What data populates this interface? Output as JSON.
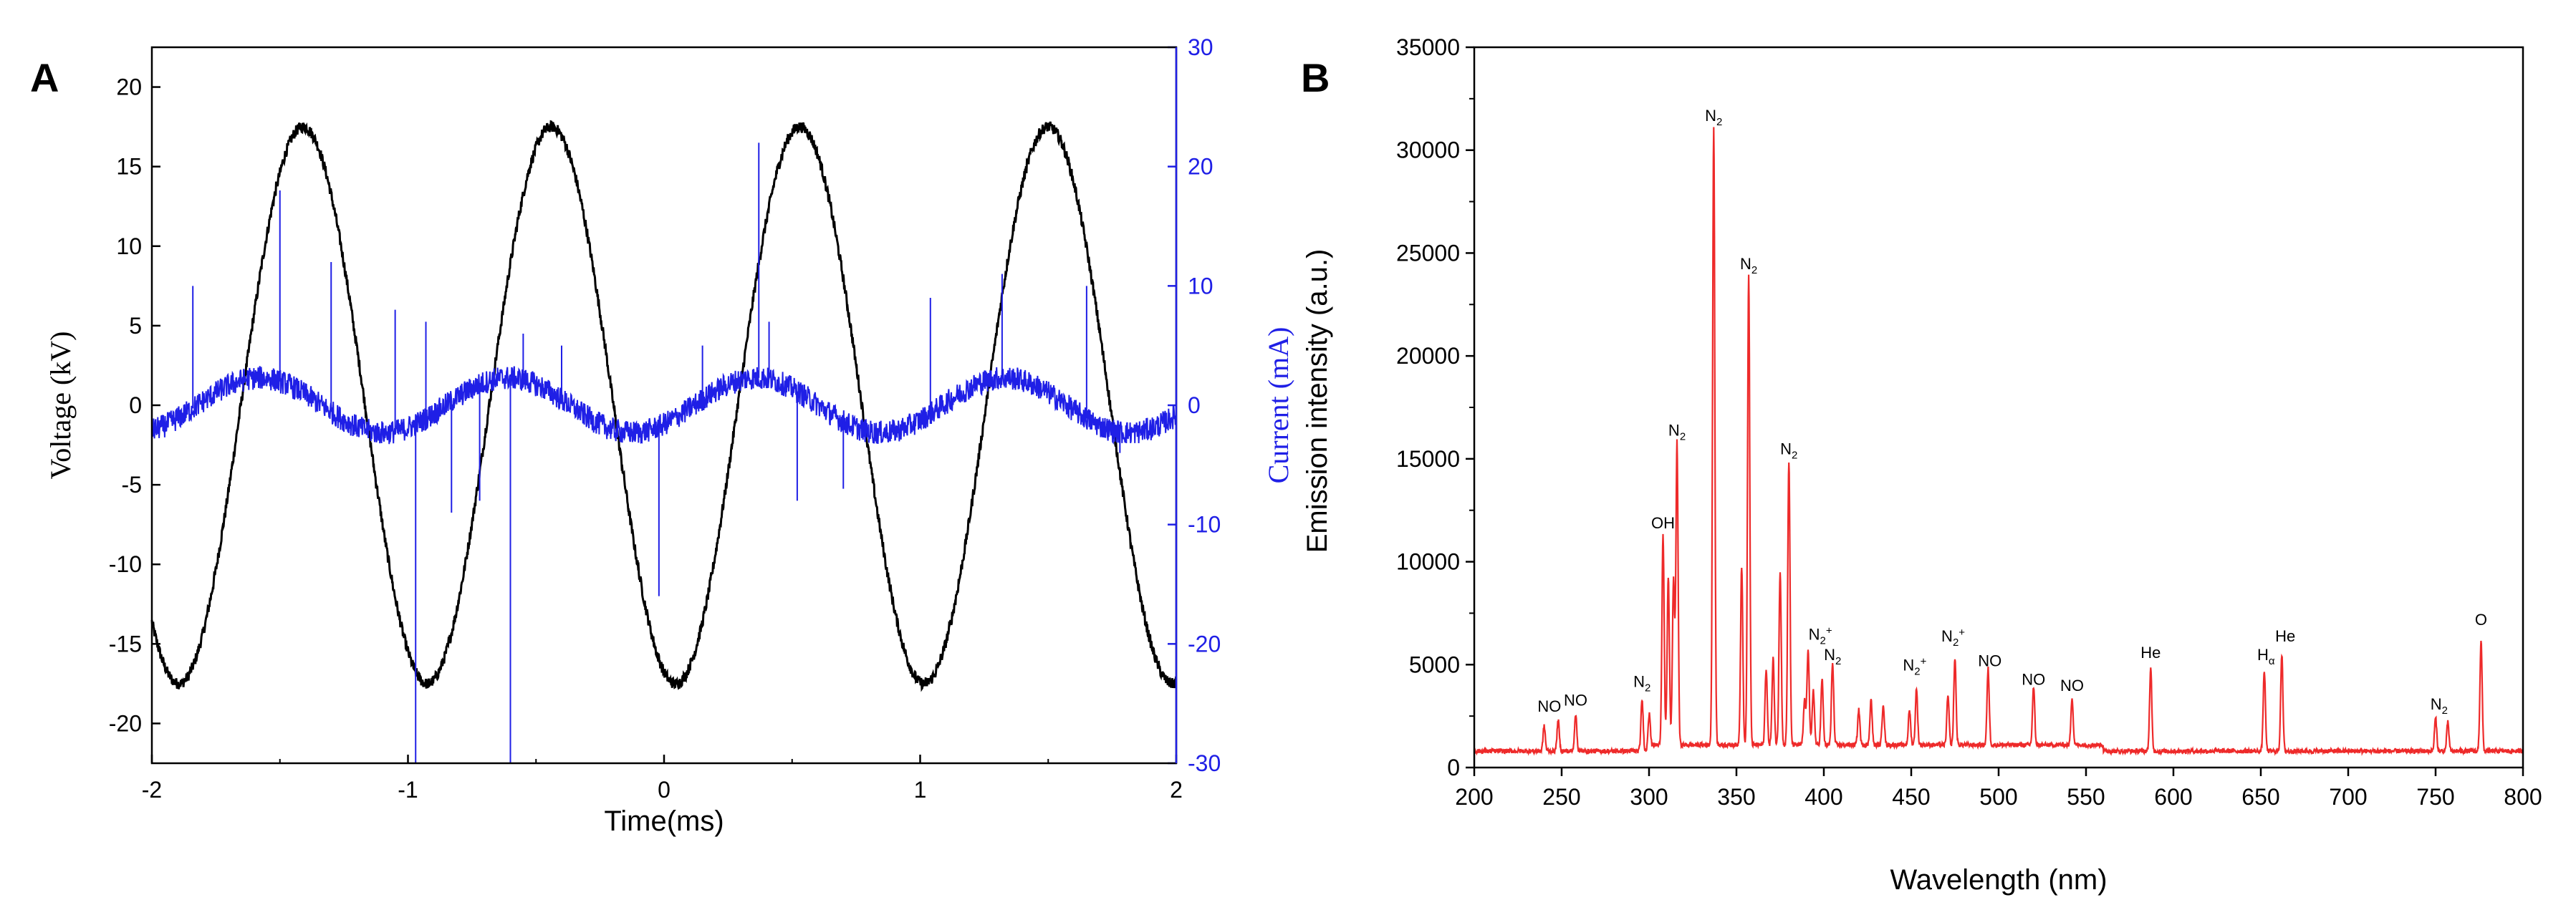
{
  "chart_data": [
    {
      "type": "line",
      "panel_label": "A",
      "title": "",
      "xlabel": "Time(ms)",
      "xlim": [
        -2,
        2
      ],
      "xticks": [
        -2,
        -1,
        0,
        1,
        2
      ],
      "ylabel_left": "Voltage (kV)",
      "ylim_left": [
        -22.5,
        22.5
      ],
      "yticks_left": [
        -20,
        -15,
        -10,
        -5,
        0,
        5,
        10,
        15,
        20
      ],
      "ylabel_right": "Current (mA)",
      "ylim_right": [
        -30,
        30
      ],
      "yticks_right": [
        -30,
        -20,
        -10,
        0,
        10,
        20,
        30
      ],
      "series": [
        {
          "name": "Voltage",
          "axis": "left",
          "color": "#000000",
          "model": "sine",
          "amplitude_kV": 17.5,
          "period_ms": 0.97,
          "first_peak_ms": -1.41
        },
        {
          "name": "Current",
          "axis": "right",
          "color": "#1f1fe6",
          "model": "sine",
          "amplitude_mA": 2.3,
          "period_ms": 0.97,
          "first_peak_ms": -1.58,
          "spikes": [
            {
              "t": -1.84,
              "mA": 10
            },
            {
              "t": -1.5,
              "mA": 18
            },
            {
              "t": -1.3,
              "mA": 12
            },
            {
              "t": -1.05,
              "mA": 8
            },
            {
              "t": -0.97,
              "mA": -30
            },
            {
              "t": -0.93,
              "mA": 7
            },
            {
              "t": -0.83,
              "mA": -9
            },
            {
              "t": -0.72,
              "mA": -8
            },
            {
              "t": -0.6,
              "mA": -30
            },
            {
              "t": -0.55,
              "mA": 6
            },
            {
              "t": -0.4,
              "mA": 5
            },
            {
              "t": -0.02,
              "mA": -16
            },
            {
              "t": 0.15,
              "mA": 5
            },
            {
              "t": 0.37,
              "mA": 22
            },
            {
              "t": 0.41,
              "mA": 7
            },
            {
              "t": 0.52,
              "mA": -8
            },
            {
              "t": 0.7,
              "mA": -7
            },
            {
              "t": 1.04,
              "mA": 9
            },
            {
              "t": 1.32,
              "mA": 11
            },
            {
              "t": 1.65,
              "mA": 10
            },
            {
              "t": 1.78,
              "mA": -4
            }
          ]
        }
      ]
    },
    {
      "type": "line",
      "panel_label": "B",
      "title": "",
      "xlabel": "Wavelength (nm)",
      "ylabel": "Emission intensity (a.u.)",
      "xlim": [
        200,
        800
      ],
      "ylim": [
        0,
        35000
      ],
      "xticks": [
        200,
        250,
        300,
        350,
        400,
        450,
        500,
        550,
        600,
        650,
        700,
        750,
        800
      ],
      "yticks": [
        0,
        5000,
        10000,
        15000,
        20000,
        25000,
        30000,
        35000
      ],
      "color": "#ee2a2a",
      "baseline": 800,
      "peaks": [
        {
          "x": 240,
          "y": 2000
        },
        {
          "x": 248,
          "y": 2300
        },
        {
          "x": 258,
          "y": 2600
        },
        {
          "x": 296,
          "y": 3300
        },
        {
          "x": 300,
          "y": 2500
        },
        {
          "x": 308,
          "y": 11000
        },
        {
          "x": 311,
          "y": 9000
        },
        {
          "x": 314,
          "y": 8800
        },
        {
          "x": 316,
          "y": 15500
        },
        {
          "x": 337,
          "y": 30800
        },
        {
          "x": 353,
          "y": 9500
        },
        {
          "x": 357,
          "y": 23600
        },
        {
          "x": 367,
          "y": 4500
        },
        {
          "x": 371,
          "y": 5000
        },
        {
          "x": 375,
          "y": 9200
        },
        {
          "x": 380,
          "y": 14600
        },
        {
          "x": 389,
          "y": 3000
        },
        {
          "x": 391,
          "y": 5500
        },
        {
          "x": 394,
          "y": 3500
        },
        {
          "x": 399,
          "y": 4000
        },
        {
          "x": 405,
          "y": 4800
        },
        {
          "x": 420,
          "y": 2500
        },
        {
          "x": 427,
          "y": 3000
        },
        {
          "x": 434,
          "y": 2800
        },
        {
          "x": 449,
          "y": 2500
        },
        {
          "x": 453,
          "y": 3500
        },
        {
          "x": 471,
          "y": 3200
        },
        {
          "x": 475,
          "y": 5000
        },
        {
          "x": 494,
          "y": 4500
        },
        {
          "x": 520,
          "y": 3600
        },
        {
          "x": 542,
          "y": 3100
        },
        {
          "x": 587,
          "y": 4800
        },
        {
          "x": 652,
          "y": 4700
        },
        {
          "x": 662,
          "y": 5500
        },
        {
          "x": 750,
          "y": 2400
        },
        {
          "x": 757,
          "y": 2200
        },
        {
          "x": 776,
          "y": 6200
        }
      ],
      "annotations": [
        {
          "x": 243,
          "y": 2300,
          "text": "NO",
          "sub": "",
          "sup": ""
        },
        {
          "x": 258,
          "y": 2600,
          "text": "NO",
          "sub": "",
          "sup": ""
        },
        {
          "x": 296,
          "y": 3500,
          "text": "N",
          "sub": "2",
          "sup": ""
        },
        {
          "x": 308,
          "y": 11200,
          "text": "OH",
          "sub": "",
          "sup": ""
        },
        {
          "x": 316,
          "y": 15700,
          "text": "N",
          "sub": "2",
          "sup": ""
        },
        {
          "x": 337,
          "y": 31000,
          "text": "N",
          "sub": "2",
          "sup": ""
        },
        {
          "x": 357,
          "y": 23800,
          "text": "N",
          "sub": "2",
          "sup": ""
        },
        {
          "x": 380,
          "y": 14800,
          "text": "N",
          "sub": "2",
          "sup": ""
        },
        {
          "x": 398,
          "y": 5800,
          "text": "N",
          "sub": "2",
          "sup": "+"
        },
        {
          "x": 405,
          "y": 4800,
          "text": "N",
          "sub": "2",
          "sup": ""
        },
        {
          "x": 452,
          "y": 4300,
          "text": "N",
          "sub": "2",
          "sup": "+"
        },
        {
          "x": 474,
          "y": 5700,
          "text": "N",
          "sub": "2",
          "sup": "+"
        },
        {
          "x": 495,
          "y": 4500,
          "text": "NO",
          "sub": "",
          "sup": ""
        },
        {
          "x": 520,
          "y": 3600,
          "text": "NO",
          "sub": "",
          "sup": ""
        },
        {
          "x": 542,
          "y": 3300,
          "text": "NO",
          "sub": "",
          "sup": ""
        },
        {
          "x": 587,
          "y": 4900,
          "text": "He",
          "sub": "",
          "sup": ""
        },
        {
          "x": 653,
          "y": 4800,
          "text": "H",
          "sub": "α",
          "sup": ""
        },
        {
          "x": 664,
          "y": 5700,
          "text": "He",
          "sub": "",
          "sup": ""
        },
        {
          "x": 752,
          "y": 2400,
          "text": "N",
          "sub": "2",
          "sup": ""
        },
        {
          "x": 776,
          "y": 6500,
          "text": "O",
          "sub": "",
          "sup": ""
        }
      ]
    }
  ]
}
